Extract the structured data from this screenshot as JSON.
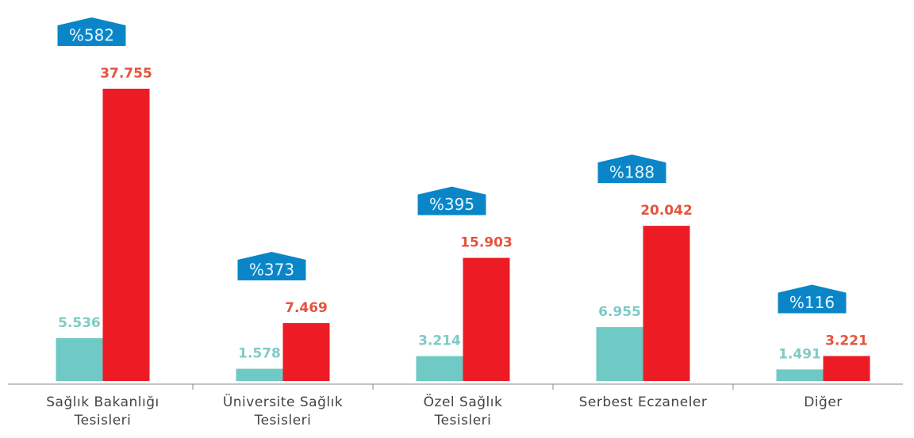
{
  "chart_data": {
    "type": "bar",
    "categories": [
      "Sağlık Bakanlığı\nTesisleri",
      "Üniversite Sağlık\nTesisleri",
      "Özel Sağlık\nTesisleri",
      "Serbest Eczaneler",
      "Diğer"
    ],
    "series": [
      {
        "color": "#6fc9c5",
        "label_color": "#7ecbc7",
        "values": [
          5536,
          1578,
          3214,
          6955,
          1491
        ],
        "value_labels": [
          "5.536",
          "1.578",
          "3.214",
          "6.955",
          "1.491"
        ]
      },
      {
        "color": "#ed1c24",
        "label_color": "#e5533d",
        "values": [
          37755,
          7469,
          15903,
          20042,
          3221
        ],
        "value_labels": [
          "37.755",
          "7.469",
          "15.903",
          "20.042",
          "3.221"
        ]
      }
    ],
    "annotations": [
      "%582",
      "%373",
      "%395",
      "%188",
      "%116"
    ],
    "annotation_color": "#0a86c8"
  }
}
